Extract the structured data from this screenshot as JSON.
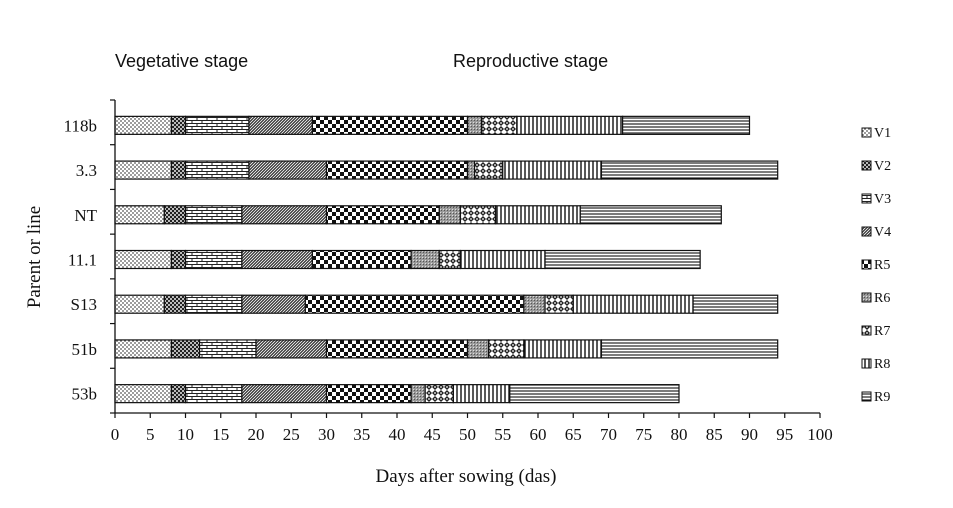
{
  "chart_data": {
    "type": "bar",
    "orientation": "horizontal",
    "stacked": true,
    "annotations": [
      "Vegetative stage",
      "Reproductive stage"
    ],
    "xlabel": "Days after sowing (das)",
    "ylabel": "Parent or line",
    "xlim": [
      0,
      100
    ],
    "xticks": [
      0,
      5,
      10,
      15,
      20,
      25,
      30,
      35,
      40,
      45,
      50,
      55,
      60,
      65,
      70,
      75,
      80,
      85,
      90,
      95,
      100
    ],
    "legend_position": "right",
    "grid": false,
    "categories": [
      "118b",
      "3.3",
      "NT",
      "11.1",
      "S13",
      "51b",
      "53b"
    ],
    "series": [
      {
        "name": "V1",
        "pattern": "dots",
        "values": [
          8,
          8,
          7,
          8,
          7,
          8,
          8
        ]
      },
      {
        "name": "V2",
        "pattern": "dark-check",
        "values": [
          2,
          2,
          3,
          2,
          3,
          4,
          2
        ]
      },
      {
        "name": "V3",
        "pattern": "bricks",
        "values": [
          9,
          9,
          8,
          8,
          8,
          8,
          8
        ]
      },
      {
        "name": "V4",
        "pattern": "dense-weave",
        "values": [
          9,
          11,
          12,
          10,
          9,
          10,
          12
        ]
      },
      {
        "name": "R5",
        "pattern": "checker",
        "values": [
          22,
          20,
          16,
          14,
          31,
          20,
          12
        ]
      },
      {
        "name": "R6",
        "pattern": "gray-stipple",
        "values": [
          2,
          1,
          3,
          4,
          3,
          3,
          2
        ]
      },
      {
        "name": "R7",
        "pattern": "diamond",
        "values": [
          5,
          4,
          5,
          3,
          4,
          5,
          4
        ]
      },
      {
        "name": "R8",
        "pattern": "vertical-lines",
        "values": [
          15,
          14,
          12,
          12,
          17,
          11,
          8
        ]
      },
      {
        "name": "R9",
        "pattern": "horizontal-lines",
        "values": [
          18,
          25,
          20,
          22,
          12,
          25,
          24
        ]
      }
    ]
  }
}
